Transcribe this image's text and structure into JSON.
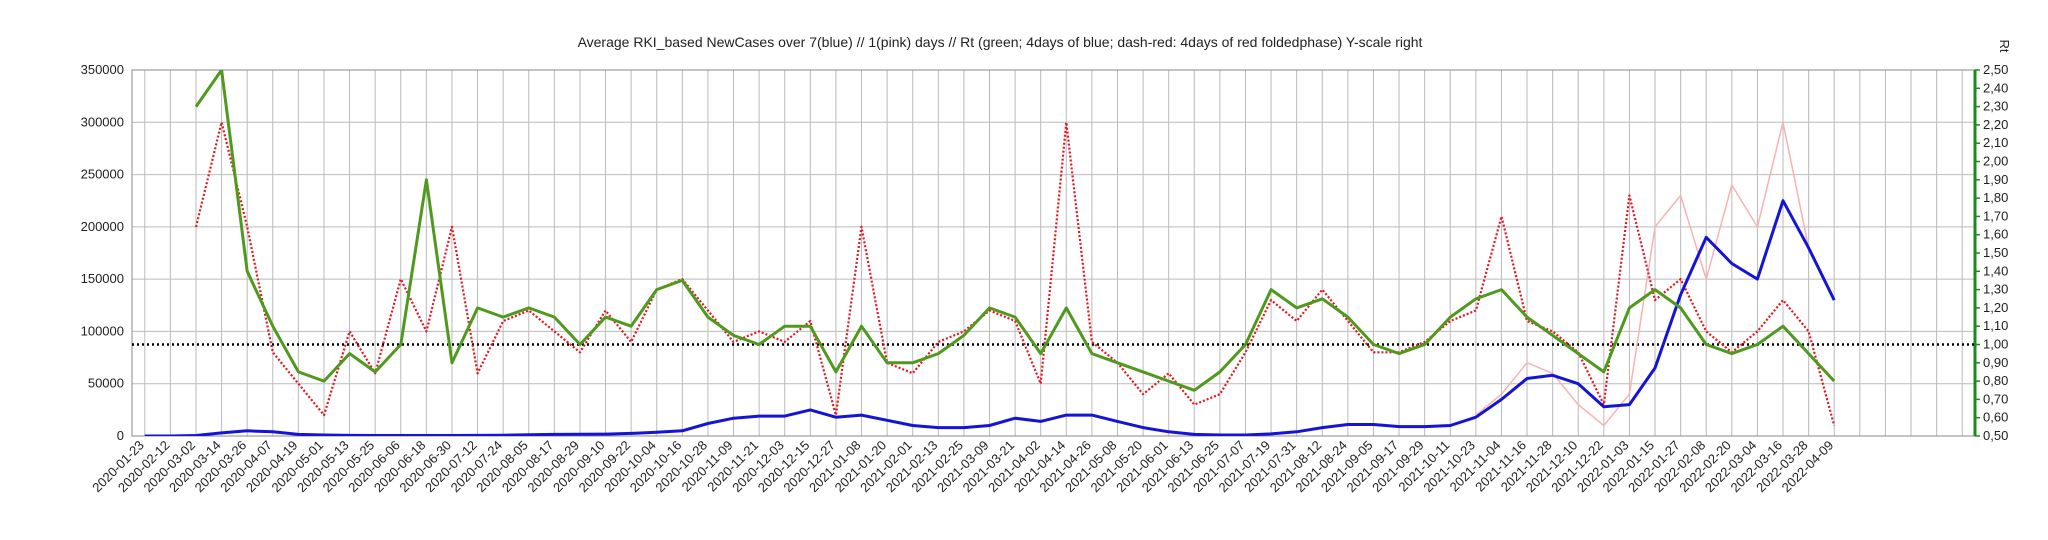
{
  "chart_data": {
    "type": "line",
    "title": "Average RKI_based NewCases over 7(blue) // 1(pink) days //  Rt (green; 4days of blue; dash-red: 4days of red foldedphase) Y-scale right",
    "y2_label": "Rt",
    "categories": [
      "2020-01-23",
      "2020-02-12",
      "2020-03-02",
      "2020-03-14",
      "2020-03-26",
      "2020-04-07",
      "2020-04-19",
      "2020-05-01",
      "2020-05-13",
      "2020-05-25",
      "2020-06-06",
      "2020-06-18",
      "2020-06-30",
      "2020-07-12",
      "2020-07-24",
      "2020-08-05",
      "2020-08-17",
      "2020-08-29",
      "2020-09-10",
      "2020-09-22",
      "2020-10-04",
      "2020-10-16",
      "2020-10-28",
      "2020-11-09",
      "2020-11-21",
      "2020-12-03",
      "2020-12-15",
      "2020-12-27",
      "2021-01-08",
      "2021-01-20",
      "2021-02-01",
      "2021-02-13",
      "2021-02-25",
      "2021-03-09",
      "2021-03-21",
      "2021-04-02",
      "2021-04-14",
      "2021-04-26",
      "2021-05-08",
      "2021-05-20",
      "2021-06-01",
      "2021-06-13",
      "2021-06-25",
      "2021-07-07",
      "2021-07-19",
      "2021-07-31",
      "2021-08-12",
      "2021-08-24",
      "2021-09-05",
      "2021-09-17",
      "2021-09-29",
      "2021-10-11",
      "2021-10-23",
      "2021-11-04",
      "2021-11-16",
      "2021-11-28",
      "2021-12-10",
      "2021-12-22",
      "2022-01-03",
      "2022-01-15",
      "2022-01-27",
      "2022-02-08",
      "2022-02-20",
      "2022-03-04",
      "2022-03-16",
      "2022-03-28",
      "2022-04-09",
      null,
      null,
      null,
      null,
      null
    ],
    "ylim": [
      0,
      350000
    ],
    "yticks": [
      0,
      50000,
      100000,
      150000,
      200000,
      250000,
      300000,
      350000
    ],
    "y2lim": [
      0.5,
      2.5
    ],
    "y2ticks": [
      {
        "value": 0.5,
        "label": "0,50"
      },
      {
        "value": 0.6,
        "label": "0,60"
      },
      {
        "value": 0.7,
        "label": "0,70"
      },
      {
        "value": 0.8,
        "label": "0,80"
      },
      {
        "value": 0.9,
        "label": "0,90"
      },
      {
        "value": 1.0,
        "label": "1,00"
      },
      {
        "value": 1.1,
        "label": "1,10"
      },
      {
        "value": 1.2,
        "label": "1,20"
      },
      {
        "value": 1.3,
        "label": "1,30"
      },
      {
        "value": 1.4,
        "label": "1,40"
      },
      {
        "value": 1.5,
        "label": "1,50"
      },
      {
        "value": 1.6,
        "label": "1,60"
      },
      {
        "value": 1.7,
        "label": "1,70"
      },
      {
        "value": 1.8,
        "label": "1,80"
      },
      {
        "value": 1.9,
        "label": "1,90"
      },
      {
        "value": 2.0,
        "label": "2,00"
      },
      {
        "value": 2.1,
        "label": "2,10"
      },
      {
        "value": 2.2,
        "label": "2,20"
      },
      {
        "value": 2.3,
        "label": "2,30"
      },
      {
        "value": 2.4,
        "label": "2,40"
      },
      {
        "value": 2.5,
        "label": "2,50"
      }
    ],
    "grid": true,
    "y2_color": "#1a8a1a",
    "reference_line": {
      "value": 1.0,
      "axis": "y2",
      "color": "#000000"
    },
    "series": [
      {
        "name": "pink",
        "color": "#f7b3b3",
        "width": 1.5,
        "dash": false,
        "values": [
          null,
          null,
          null,
          null,
          null,
          null,
          null,
          null,
          null,
          null,
          null,
          null,
          null,
          null,
          null,
          null,
          null,
          null,
          null,
          null,
          null,
          null,
          null,
          null,
          null,
          null,
          null,
          null,
          null,
          null,
          null,
          null,
          null,
          null,
          null,
          null,
          null,
          null,
          null,
          null,
          null,
          null,
          null,
          null,
          null,
          null,
          null,
          null,
          null,
          null,
          null,
          null,
          20000,
          40000,
          70000,
          60000,
          30000,
          10000,
          40000,
          200000,
          230000,
          150000,
          240000,
          200000,
          300000,
          180000,
          null,
          null,
          null,
          null,
          null,
          null
        ]
      },
      {
        "name": "red",
        "color": "#e8141e",
        "width": 2.2,
        "dash": true,
        "values": [
          null,
          null,
          200000,
          300000,
          200000,
          80000,
          50000,
          20000,
          100000,
          60000,
          150000,
          100000,
          200000,
          60000,
          110000,
          120000,
          100000,
          80000,
          120000,
          90000,
          140000,
          150000,
          120000,
          90000,
          100000,
          90000,
          110000,
          20000,
          200000,
          70000,
          60000,
          90000,
          100000,
          120000,
          110000,
          50000,
          300000,
          90000,
          70000,
          40000,
          60000,
          30000,
          40000,
          80000,
          130000,
          110000,
          140000,
          110000,
          80000,
          80000,
          90000,
          110000,
          120000,
          210000,
          110000,
          100000,
          80000,
          30000,
          230000,
          130000,
          150000,
          100000,
          80000,
          100000,
          130000,
          100000,
          10000,
          null,
          null,
          null,
          null,
          null
        ]
      },
      {
        "name": "blue",
        "color": "#1414d8",
        "width": 3,
        "dash": false,
        "values": [
          0,
          0,
          500,
          3000,
          5000,
          4000,
          1500,
          1000,
          600,
          500,
          500,
          500,
          500,
          600,
          800,
          1200,
          1500,
          1600,
          1800,
          2500,
          3500,
          5000,
          12000,
          17000,
          19000,
          19000,
          25000,
          18000,
          20000,
          15000,
          10000,
          8000,
          8000,
          10000,
          17000,
          14000,
          20000,
          20000,
          14000,
          8000,
          4000,
          1500,
          1000,
          1000,
          2000,
          4000,
          8000,
          11000,
          11000,
          9000,
          9000,
          10000,
          18000,
          35000,
          55000,
          58000,
          50000,
          28000,
          30000,
          65000,
          135000,
          190000,
          165000,
          150000,
          225000,
          180000,
          130000,
          null,
          null,
          null,
          null,
          null
        ]
      },
      {
        "name": "green",
        "color": "#4f9a1e",
        "width": 3,
        "dash": false,
        "axis": "y2",
        "values": [
          null,
          null,
          2.3,
          2.5,
          1.4,
          1.1,
          0.85,
          0.8,
          0.95,
          0.85,
          1.0,
          1.9,
          0.9,
          1.2,
          1.15,
          1.2,
          1.15,
          1.0,
          1.15,
          1.1,
          1.3,
          1.35,
          1.15,
          1.05,
          1.0,
          1.1,
          1.1,
          0.85,
          1.1,
          0.9,
          0.9,
          0.95,
          1.05,
          1.2,
          1.15,
          0.95,
          1.2,
          0.95,
          0.9,
          0.85,
          0.8,
          0.75,
          0.85,
          1.0,
          1.3,
          1.2,
          1.25,
          1.15,
          1.0,
          0.95,
          1.0,
          1.15,
          1.25,
          1.3,
          1.15,
          1.05,
          0.95,
          0.85,
          1.2,
          1.3,
          1.2,
          1.0,
          0.95,
          1.0,
          1.1,
          0.95,
          0.8,
          null,
          null,
          null,
          null,
          null
        ]
      }
    ]
  }
}
